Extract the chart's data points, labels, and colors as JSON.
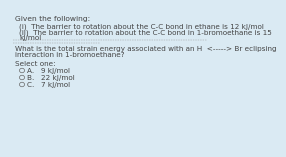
{
  "background_color": "#daeaf3",
  "title_text": "Given the following:",
  "line1": "(i)  The barrier to rotation about the C-C bond in ethane is 12 kJ/mol",
  "line2_a": "(ii)  The barrier to rotation about the C-C bond in 1-bromoethane is 15",
  "line2_b": "kJ/mol",
  "question_a": "What is the total strain energy associated with an H  <-----> Br eclipsing",
  "question_b": "interaction in 1-bromoethane?",
  "select_label": "Select one:",
  "options": [
    "A.   9 kJ/mol",
    "B.   22 kJ/mol",
    "C.   7 kJ/mol"
  ],
  "font_color": "#444444",
  "font_size": 5.2,
  "title_font_size": 5.4
}
